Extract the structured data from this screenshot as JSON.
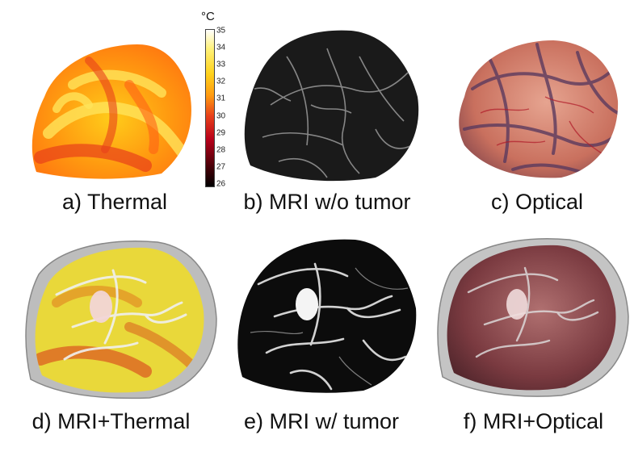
{
  "panels": {
    "a": {
      "caption": "a) Thermal"
    },
    "b": {
      "caption": "b) MRI w/o tumor"
    },
    "c": {
      "caption": "c) Optical"
    },
    "d": {
      "caption": "d) MRI+Thermal"
    },
    "e": {
      "caption": "e) MRI w/ tumor"
    },
    "f": {
      "caption": "f) MRI+Optical"
    }
  },
  "colorbar": {
    "unit": "°C",
    "ticks": [
      "35",
      "34",
      "33",
      "32",
      "31",
      "30",
      "29",
      "28",
      "27",
      "26"
    ],
    "colors": [
      "#ffffff",
      "#fff27a",
      "#ffd21c",
      "#ff9a10",
      "#e8401a",
      "#b8001a",
      "#4a0008",
      "#000000"
    ]
  }
}
